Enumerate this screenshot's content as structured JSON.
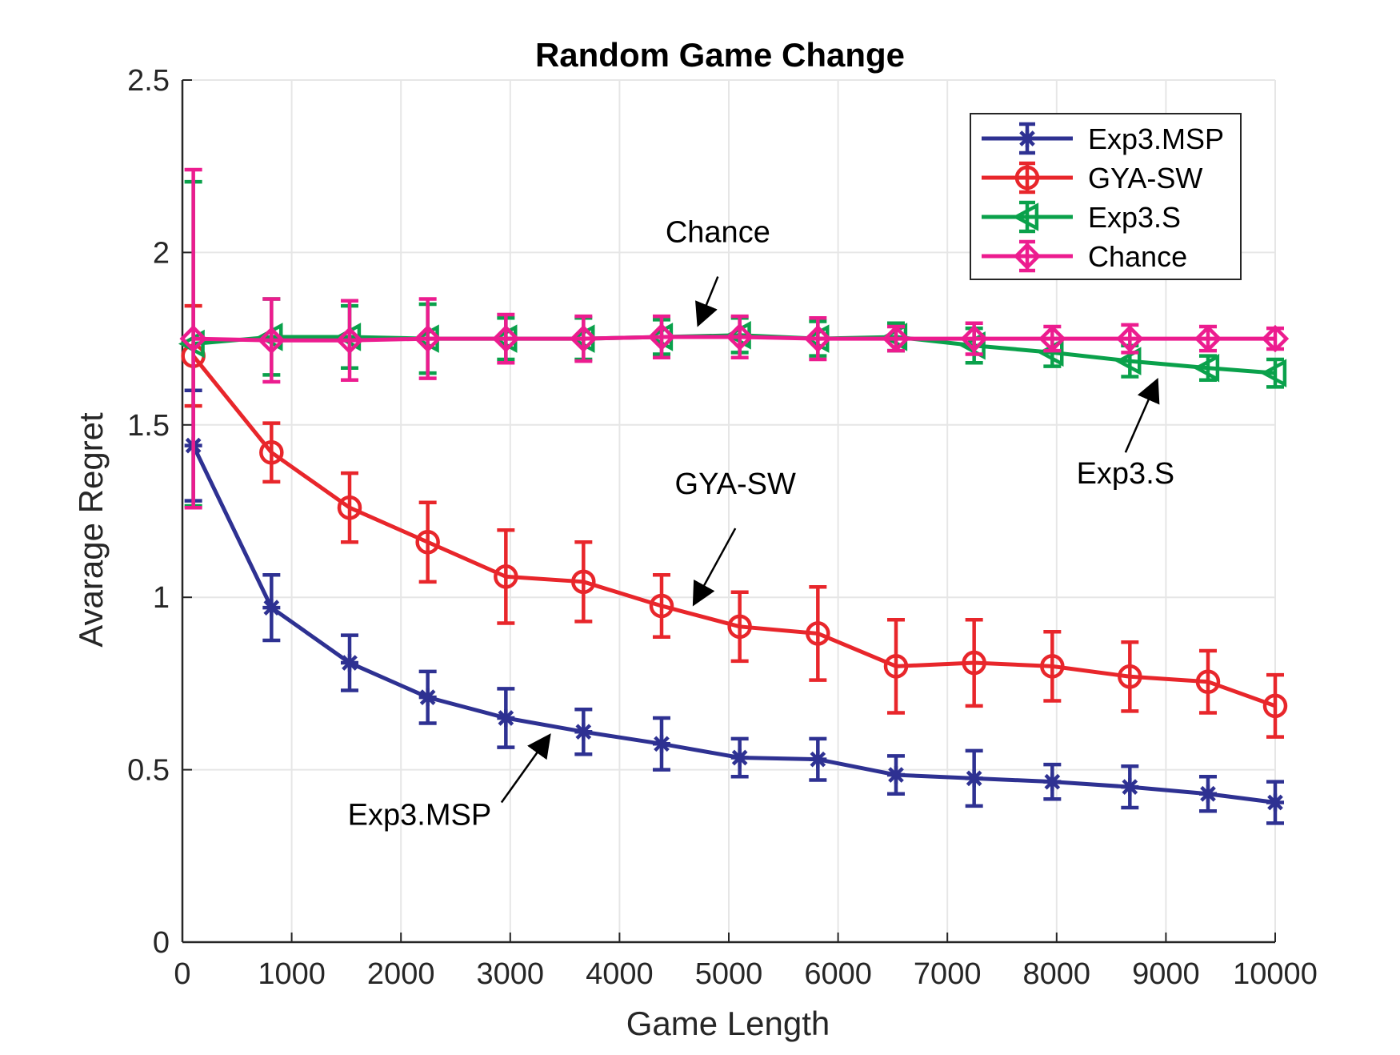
{
  "chart_data": {
    "type": "line",
    "title": "Random Game Change",
    "xlabel": "Game Length",
    "ylabel": "Avarage Regret",
    "xlim": [
      0,
      10000
    ],
    "ylim": [
      0,
      2.5
    ],
    "xticks": [
      0,
      1000,
      2000,
      3000,
      4000,
      5000,
      6000,
      7000,
      8000,
      9000,
      10000
    ],
    "yticks": [
      0,
      0.5,
      1,
      1.5,
      2,
      2.5
    ],
    "xtick_labels": [
      "0",
      "1000",
      "2000",
      "3000",
      "4000",
      "5000",
      "6000",
      "7000",
      "8000",
      "9000",
      "10000"
    ],
    "ytick_labels": [
      "0",
      "0.5",
      "1",
      "1.5",
      "2",
      "2.5"
    ],
    "grid": true,
    "legend_position": "top-right",
    "x": [
      100,
      815,
      1530,
      2245,
      2960,
      3670,
      4385,
      5100,
      5815,
      6530,
      7245,
      7960,
      8670,
      9385,
      10000
    ],
    "series": [
      {
        "name": "Exp3.MSP",
        "color": "#2e3192",
        "marker": "star",
        "values": [
          1.44,
          0.97,
          0.81,
          0.71,
          0.65,
          0.61,
          0.575,
          0.535,
          0.53,
          0.485,
          0.475,
          0.465,
          0.45,
          0.43,
          0.405
        ],
        "errors": [
          0.16,
          0.095,
          0.08,
          0.075,
          0.085,
          0.065,
          0.075,
          0.055,
          0.06,
          0.055,
          0.08,
          0.05,
          0.06,
          0.05,
          0.06
        ]
      },
      {
        "name": "GYA-SW",
        "color": "#e8262b",
        "marker": "circle",
        "values": [
          1.7,
          1.42,
          1.26,
          1.16,
          1.06,
          1.045,
          0.975,
          0.915,
          0.895,
          0.8,
          0.81,
          0.8,
          0.77,
          0.755,
          0.685
        ],
        "errors": [
          0.145,
          0.085,
          0.1,
          0.115,
          0.135,
          0.115,
          0.09,
          0.1,
          0.135,
          0.135,
          0.125,
          0.1,
          0.1,
          0.09,
          0.09
        ]
      },
      {
        "name": "Exp3.S",
        "color": "#0aa14b",
        "marker": "triangle-left",
        "values": [
          1.735,
          1.755,
          1.755,
          1.75,
          1.75,
          1.75,
          1.755,
          1.76,
          1.75,
          1.755,
          1.73,
          1.71,
          1.685,
          1.665,
          1.65
        ],
        "errors": [
          0.47,
          0.11,
          0.09,
          0.1,
          0.06,
          0.06,
          0.05,
          0.05,
          0.05,
          0.04,
          0.05,
          0.04,
          0.045,
          0.035,
          0.04
        ]
      },
      {
        "name": "Chance",
        "color": "#ec1c8f",
        "marker": "diamond",
        "values": [
          1.75,
          1.745,
          1.745,
          1.75,
          1.75,
          1.75,
          1.755,
          1.755,
          1.75,
          1.75,
          1.75,
          1.75,
          1.75,
          1.75,
          1.75
        ],
        "errors": [
          0.49,
          0.12,
          0.115,
          0.115,
          0.07,
          0.065,
          0.06,
          0.06,
          0.06,
          0.035,
          0.045,
          0.035,
          0.04,
          0.035,
          0.03
        ]
      }
    ],
    "annotations": [
      {
        "text": "Chance",
        "x": 4900,
        "y": 2.03,
        "arrow_from": [
          4900,
          1.93
        ],
        "arrow_to": [
          4720,
          1.79
        ]
      },
      {
        "text": "Exp3.S",
        "x": 8630,
        "y": 1.33,
        "arrow_from": [
          8630,
          1.42
        ],
        "arrow_to": [
          8920,
          1.63
        ]
      },
      {
        "text": "GYA-SW",
        "x": 5060,
        "y": 1.3,
        "arrow_from": [
          5060,
          1.2
        ],
        "arrow_to": [
          4680,
          0.98
        ]
      },
      {
        "text": "Exp3.MSP",
        "x": 2170,
        "y": 0.34,
        "arrow_from": [
          2920,
          0.405
        ],
        "arrow_to": [
          3360,
          0.6
        ]
      }
    ]
  }
}
